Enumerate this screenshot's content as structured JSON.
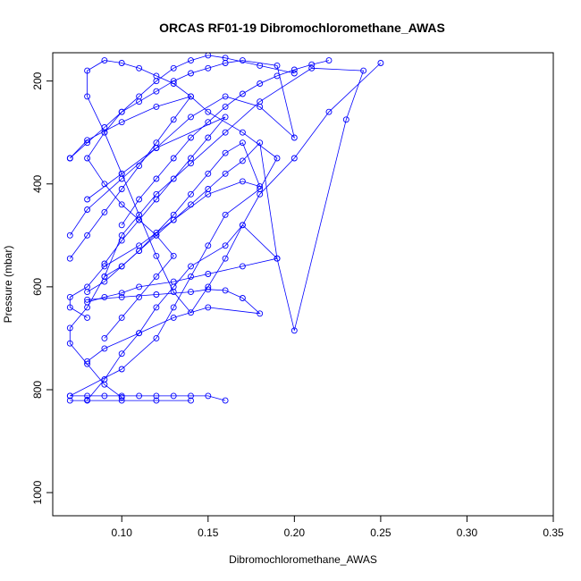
{
  "chart_data": {
    "type": "line",
    "title": "ORCAS RF01-19 Dibromochloromethane_AWAS",
    "xlabel": "Dibromochloromethane_AWAS",
    "ylabel": "Pressure (mbar)",
    "xlim": [
      0.06,
      0.35
    ],
    "ylim": [
      1045,
      145
    ],
    "y_reversed": true,
    "x_ticks": [
      0.1,
      0.15,
      0.2,
      0.25,
      0.3,
      0.35
    ],
    "x_tick_labels": [
      "0.10",
      "0.15",
      "0.20",
      "0.25",
      "0.30",
      "0.35"
    ],
    "y_ticks": [
      200,
      400,
      600,
      800,
      1000
    ],
    "y_tick_labels": [
      "200",
      "400",
      "600",
      "800",
      "1000"
    ],
    "series_color": "#0000ff",
    "marker": "open-circle",
    "series": [
      {
        "x": [
          0.07,
          0.1,
          0.12,
          0.13,
          0.14,
          0.15,
          0.16,
          0.18,
          0.19,
          0.17,
          0.15,
          0.14,
          0.13,
          0.12,
          0.11,
          0.1,
          0.09,
          0.08,
          0.08,
          0.09,
          0.1,
          0.11,
          0.12,
          0.13,
          0.14,
          0.15,
          0.16,
          0.17,
          0.18,
          0.2,
          0.22,
          0.25
        ],
        "y": [
          812,
          760,
          700,
          640,
          580,
          520,
          460,
          410,
          350,
          300,
          260,
          230,
          205,
          190,
          175,
          165,
          160,
          180,
          230,
          300,
          380,
          460,
          540,
          610,
          650,
          600,
          545,
          480,
          420,
          350,
          260,
          165
        ]
      },
      {
        "x": [
          0.08,
          0.09,
          0.1,
          0.11,
          0.12,
          0.13,
          0.14,
          0.16,
          0.17,
          0.19,
          0.2,
          0.23,
          0.24,
          0.21,
          0.18,
          0.16,
          0.14,
          0.12,
          0.1,
          0.09,
          0.08,
          0.07,
          0.07,
          0.08,
          0.09,
          0.1
        ],
        "y": [
          820,
          780,
          730,
          690,
          640,
          600,
          560,
          520,
          480,
          545,
          685,
          275,
          180,
          175,
          240,
          300,
          360,
          420,
          500,
          580,
          640,
          680,
          710,
          750,
          790,
          815
        ]
      },
      {
        "x": [
          0.09,
          0.1,
          0.11,
          0.12,
          0.13,
          0.12,
          0.11,
          0.1,
          0.09,
          0.08,
          0.09,
          0.1,
          0.11,
          0.12,
          0.13,
          0.14,
          0.15,
          0.16,
          0.18,
          0.2
        ],
        "y": [
          700,
          660,
          620,
          580,
          540,
          500,
          470,
          440,
          400,
          350,
          300,
          260,
          230,
          200,
          175,
          160,
          150,
          155,
          170,
          185
        ]
      },
      {
        "x": [
          0.08,
          0.09,
          0.1,
          0.11,
          0.12,
          0.13,
          0.14,
          0.15,
          0.16,
          0.17,
          0.18,
          0.17,
          0.15,
          0.13,
          0.11,
          0.09,
          0.08,
          0.07,
          0.07,
          0.08
        ],
        "y": [
          610,
          590,
          560,
          530,
          495,
          460,
          420,
          380,
          340,
          320,
          405,
          395,
          420,
          470,
          520,
          560,
          600,
          620,
          640,
          660
        ]
      },
      {
        "x": [
          0.07,
          0.08,
          0.09,
          0.1,
          0.11,
          0.12,
          0.13,
          0.14,
          0.15,
          0.16,
          0.17,
          0.19,
          0.2,
          0.18,
          0.16,
          0.14,
          0.12,
          0.1,
          0.08,
          0.07
        ],
        "y": [
          350,
          320,
          290,
          260,
          240,
          220,
          200,
          185,
          175,
          165,
          160,
          170,
          310,
          250,
          230,
          270,
          330,
          390,
          450,
          500
        ]
      },
      {
        "x": [
          0.09,
          0.1,
          0.11,
          0.12,
          0.13,
          0.14,
          0.15,
          0.16,
          0.17,
          0.18,
          0.19,
          0.17,
          0.15,
          0.13,
          0.11,
          0.1,
          0.09,
          0.08
        ],
        "y": [
          580,
          560,
          530,
          500,
          470,
          440,
          410,
          380,
          355,
          320,
          545,
          560,
          575,
          590,
          600,
          612,
          620,
          630
        ]
      },
      {
        "x": [
          0.08,
          0.1,
          0.12,
          0.14,
          0.15,
          0.16,
          0.17,
          0.18,
          0.15,
          0.13,
          0.11,
          0.09,
          0.08
        ],
        "y": [
          625,
          620,
          615,
          610,
          605,
          607,
          622,
          652,
          640,
          660,
          690,
          720,
          745
        ]
      },
      {
        "x": [
          0.09,
          0.1,
          0.11,
          0.12,
          0.13,
          0.14,
          0.15,
          0.16,
          0.12,
          0.1,
          0.08
        ],
        "y": [
          555,
          510,
          470,
          430,
          390,
          350,
          310,
          270,
          330,
          380,
          430
        ]
      },
      {
        "x": [
          0.1,
          0.11,
          0.12,
          0.13,
          0.14,
          0.15,
          0.16,
          0.17,
          0.18,
          0.19,
          0.2,
          0.21,
          0.22
        ],
        "y": [
          480,
          430,
          390,
          350,
          310,
          280,
          250,
          225,
          205,
          190,
          178,
          168,
          160
        ]
      },
      {
        "x": [
          0.07,
          0.08,
          0.09,
          0.1,
          0.11,
          0.12,
          0.13,
          0.14,
          0.12,
          0.1,
          0.08,
          0.07
        ],
        "y": [
          545,
          500,
          455,
          410,
          365,
          320,
          275,
          230,
          250,
          280,
          315,
          350
        ]
      }
    ],
    "flat_series": [
      {
        "x": [
          0.07,
          0.08,
          0.09,
          0.1,
          0.11,
          0.12,
          0.13,
          0.14,
          0.15,
          0.16
        ],
        "y": [
          812,
          812,
          812,
          812,
          812,
          812,
          812,
          812,
          812,
          821
        ]
      },
      {
        "x": [
          0.07,
          0.08,
          0.1,
          0.12,
          0.14
        ],
        "y": [
          821,
          821,
          821,
          821,
          821
        ]
      }
    ]
  }
}
